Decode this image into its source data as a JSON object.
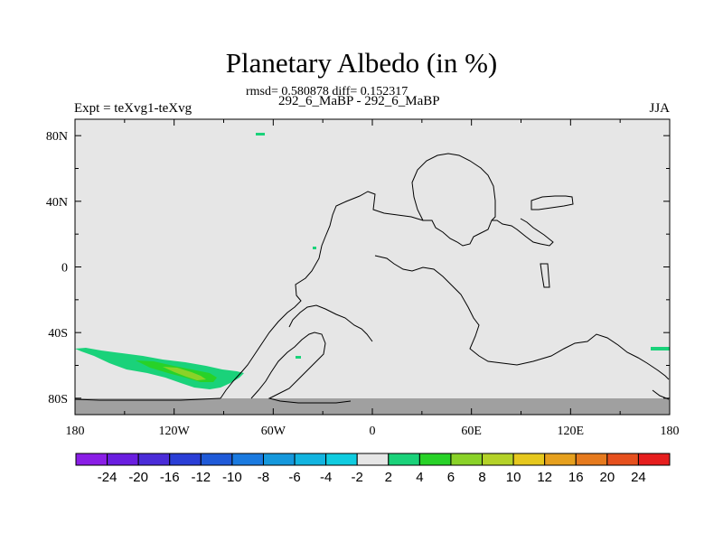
{
  "chart_data": {
    "type": "heatmap",
    "title": "Planetary Albedo (in %)",
    "stats_text": "rmsd= 0.580878 diff= 0.152317",
    "left_label": "Expt = teXvg1-teXvg",
    "center_label": "292_6_MaBP - 292_6_MaBP",
    "right_label": "JJA",
    "x_ticks": [
      "180",
      "120W",
      "60W",
      "0",
      "60E",
      "120E",
      "180"
    ],
    "y_ticks": [
      "80N",
      "40N",
      "0",
      "40S",
      "80S"
    ],
    "xlim": [
      -180,
      180
    ],
    "ylim": [
      -90,
      90
    ],
    "colorbar": {
      "labels": [
        "-24",
        "-20",
        "-16",
        "-12",
        "-10",
        "-8",
        "-6",
        "-4",
        "-2",
        "2",
        "4",
        "6",
        "8",
        "10",
        "12",
        "16",
        "20",
        "24"
      ],
      "colors": [
        "#8a1ee6",
        "#6a1ee0",
        "#4a2cd8",
        "#2a3ed6",
        "#1f5ad8",
        "#1a7ae0",
        "#1598dc",
        "#12b4e0",
        "#10cce0",
        "#e6e6e6",
        "#1ad27a",
        "#28d228",
        "#8ad228",
        "#b4d228",
        "#e6c81e",
        "#e6a01e",
        "#e67a1e",
        "#e6501e",
        "#e61e1e"
      ]
    },
    "missing_color": "#a0a0a0",
    "background_color": "#e6e6e6",
    "anomaly_regions": [
      {
        "name": "southern-pacific-band",
        "levels": [
          "2-4",
          "4-6",
          "6-8"
        ],
        "lon_range": [
          -180,
          -80
        ],
        "lat_range": [
          -75,
          -50
        ]
      },
      {
        "name": "arctic-patch",
        "levels": [
          "2-4"
        ],
        "lon_range": [
          -70,
          -62
        ],
        "lat_range": [
          78,
          80
        ]
      },
      {
        "name": "south-indian-patch",
        "levels": [
          "2-4"
        ],
        "lon_range": [
          170,
          180
        ],
        "lat_range": [
          -52,
          -49
        ]
      }
    ]
  }
}
